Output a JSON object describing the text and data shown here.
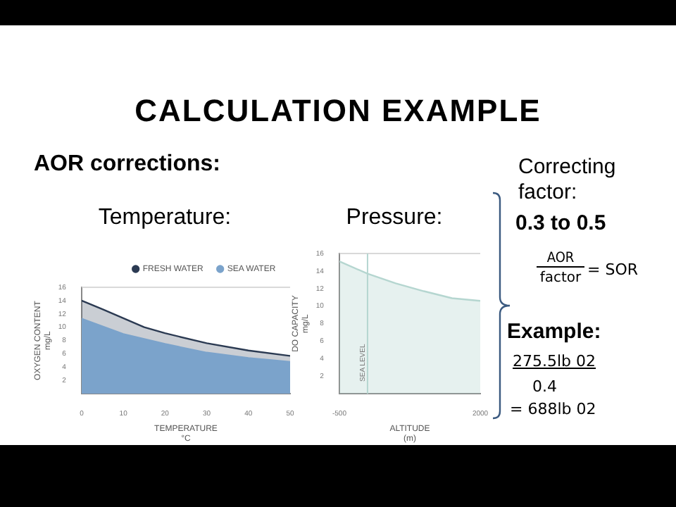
{
  "chart_data": [
    {
      "type": "area",
      "title": "Temperature:",
      "xlabel": "TEMPERATURE\n°C",
      "ylabel": "OXYGEN CONTENT\nmg/L",
      "xlim": [
        0,
        50
      ],
      "xticks": [
        0,
        10,
        20,
        30,
        40,
        50
      ],
      "ylim": [
        0,
        16
      ],
      "yticks": [
        {
          "value": 0,
          "label": null
        },
        2,
        4,
        6,
        8,
        10,
        12,
        14,
        16
      ],
      "legend": "top right",
      "grid": false,
      "series": [
        {
          "name": "FRESH WATER",
          "color": "#2b3a52",
          "x": [
            0,
            5,
            15,
            20,
            30,
            40,
            50
          ],
          "values": [
            14,
            12.7,
            10,
            9.1,
            7.6,
            6.5,
            5.7
          ]
        },
        {
          "name": "SEA WATER",
          "color": "#7ba3cb",
          "x": [
            0,
            10,
            20,
            30,
            40,
            50
          ],
          "values": [
            11.3,
            9,
            7.5,
            6.2,
            5.4,
            4.8
          ]
        }
      ]
    },
    {
      "type": "area",
      "title": "Pressure:",
      "xlabel": "ALTITUDE\n(m)",
      "ylabel": "DO CAPACITY\nmg/L",
      "xlim": [
        -500,
        2000
      ],
      "xticks": [
        -500,
        2000
      ],
      "ylim": [
        0,
        16
      ],
      "yticks": [
        {
          "value": 0,
          "label": null
        },
        2,
        4,
        6,
        8,
        10,
        12,
        14,
        16
      ],
      "legend": false,
      "grid": false,
      "series": [
        {
          "color": "#b5d6d0",
          "x": [
            -500,
            0,
            500,
            1000,
            1500,
            2000
          ],
          "values": [
            15.1,
            13.7,
            12.6,
            11.7,
            10.9,
            10.6
          ]
        }
      ],
      "ref_lines": [
        {
          "axis": "x",
          "value": 0,
          "label": "SEA LEVEL",
          "color": "#b5d6d0"
        }
      ]
    },
    {
      "type": "other",
      "title": "CALCULATION EXAMPLE",
      "subtitle": "AOR corrections:",
      "annotations": [
        "Correcting factor:",
        "0.3 to 0.5",
        "AOR",
        "factor",
        "= SOR",
        "Example:",
        "275.5lb 02",
        "0.4",
        "= 688lb 02"
      ]
    }
  ]
}
